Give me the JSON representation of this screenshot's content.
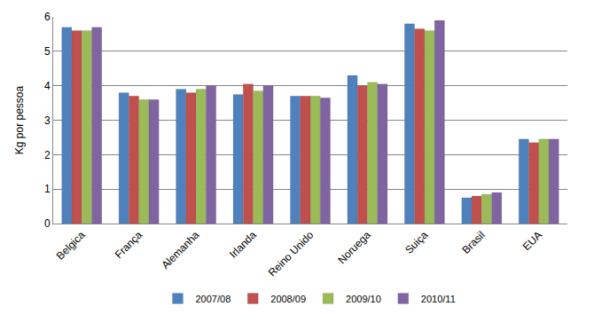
{
  "chart_data": {
    "type": "bar",
    "y_label": "Kg por pessoa",
    "categories": [
      "Belgica",
      "França",
      "Alemanha",
      "Irlanda",
      "Reino Unido",
      "Noruega",
      "Suiça",
      "Brasil",
      "EUA"
    ],
    "series": [
      {
        "name": "2007/08",
        "color": "#4F81BD",
        "values": [
          5.7,
          3.8,
          3.9,
          3.75,
          3.7,
          4.3,
          5.8,
          0.75,
          2.45
        ]
      },
      {
        "name": "2008/09",
        "color": "#C0504D",
        "values": [
          5.6,
          3.7,
          3.8,
          4.05,
          3.7,
          4.0,
          5.65,
          0.8,
          2.35
        ]
      },
      {
        "name": "2009/10",
        "color": "#9BBB59",
        "values": [
          5.6,
          3.6,
          3.9,
          3.85,
          3.7,
          4.1,
          5.6,
          0.85,
          2.45
        ]
      },
      {
        "name": "2010/11",
        "color": "#8064A2",
        "values": [
          5.7,
          3.6,
          4.0,
          4.0,
          3.65,
          4.05,
          5.9,
          0.9,
          2.45
        ]
      }
    ],
    "ylim": [
      0,
      6
    ],
    "yticks": [
      0,
      1,
      2,
      3,
      4,
      5,
      6
    ],
    "grid": true,
    "legend": "bottom"
  }
}
